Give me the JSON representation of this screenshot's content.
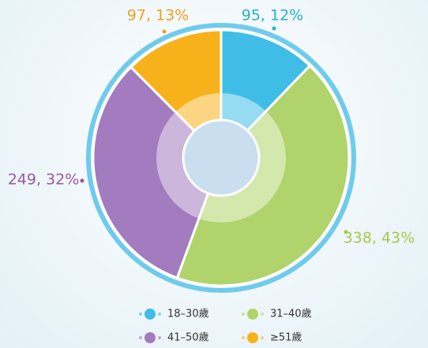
{
  "chart_data": {
    "type": "pie",
    "categories": [
      "18–30歲",
      "31–40歲",
      "41–50歲",
      "≥51歲"
    ],
    "values": [
      95,
      338,
      249,
      97
    ],
    "value_labels": [
      "95, 12%",
      "338, 43%",
      "249, 32%",
      "97, 13%"
    ],
    "colors": [
      "#3fbde6",
      "#b1d36b",
      "#a37bbf",
      "#f7b21b"
    ],
    "label_colors": [
      "#27b3c4",
      "#a6c94a",
      "#9559a6",
      "#f2a11d"
    ]
  }
}
